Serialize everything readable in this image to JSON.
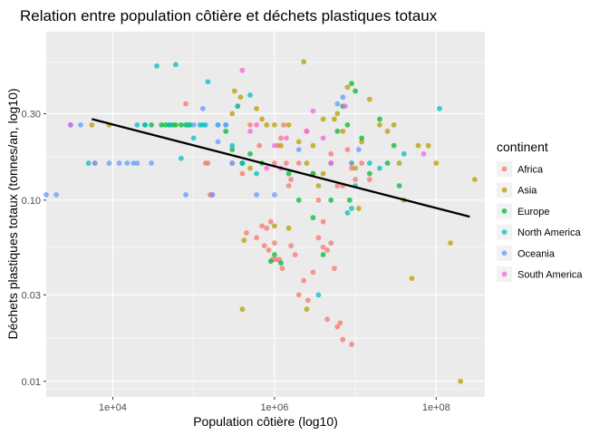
{
  "chart_data": {
    "type": "scatter",
    "title": "Relation entre population côtière et déchets plastiques totaux",
    "xlabel": "Population côtière (log10)",
    "ylabel": "Déchets plastiques totaux (tonnes/an, log10)",
    "x_scale": "log10",
    "y_scale": "log10",
    "xlim": [
      1500,
      400000000
    ],
    "ylim": [
      0.0082,
      0.85
    ],
    "x_ticks": [
      10000,
      1000000,
      100000000
    ],
    "x_tick_labels": [
      "1e+04",
      "1e+06",
      "1e+08"
    ],
    "y_ticks": [
      0.01,
      0.03,
      0.1,
      0.3
    ],
    "y_tick_labels": [
      "0.01",
      "0.03",
      "0.10",
      "0.30"
    ],
    "grid": true,
    "legend_position": "right",
    "legend_title": "continent",
    "trend_line": {
      "x": [
        5500,
        260000000
      ],
      "y": [
        0.28,
        0.081
      ]
    },
    "series": [
      {
        "name": "Africa",
        "color": "#F8766D",
        "points": [
          [
            6000,
            0.16
          ],
          [
            80000,
            0.34
          ],
          [
            140000,
            0.16
          ],
          [
            150000,
            0.16
          ],
          [
            160000,
            0.107
          ],
          [
            170000,
            0.107
          ],
          [
            300000,
            0.16
          ],
          [
            400000,
            0.14
          ],
          [
            500000,
            0.26
          ],
          [
            650000,
            0.2
          ],
          [
            700000,
            0.072
          ],
          [
            800000,
            0.07
          ],
          [
            900000,
            0.076
          ],
          [
            1000000,
            0.16
          ],
          [
            1100000,
            0.2
          ],
          [
            1200000,
            0.22
          ],
          [
            1300000,
            0.26
          ],
          [
            1400000,
            0.16
          ],
          [
            1500000,
            0.12
          ],
          [
            1600000,
            0.13
          ],
          [
            2000000,
            0.16
          ],
          [
            2500000,
            0.24
          ],
          [
            3000000,
            0.14
          ],
          [
            3500000,
            0.1
          ],
          [
            4000000,
            0.076
          ],
          [
            5000000,
            0.18
          ],
          [
            6000000,
            0.12
          ],
          [
            7000000,
            0.12
          ],
          [
            8000000,
            0.19
          ],
          [
            9000000,
            0.15
          ],
          [
            10000000,
            0.13
          ],
          [
            12000000,
            0.16
          ],
          [
            15000000,
            0.13
          ],
          [
            450000,
            0.066
          ],
          [
            600000,
            0.062
          ],
          [
            750000,
            0.056
          ],
          [
            850000,
            0.053
          ],
          [
            950000,
            0.047
          ],
          [
            1050000,
            0.047
          ],
          [
            1150000,
            0.047
          ],
          [
            1250000,
            0.042
          ],
          [
            1600000,
            0.056
          ],
          [
            1800000,
            0.05
          ],
          [
            2000000,
            0.03
          ],
          [
            2300000,
            0.036
          ],
          [
            2600000,
            0.028
          ],
          [
            3000000,
            0.04
          ],
          [
            3500000,
            0.062
          ],
          [
            4000000,
            0.055
          ],
          [
            4500000,
            0.053
          ],
          [
            5000000,
            0.058
          ],
          [
            5500000,
            0.042
          ],
          [
            6000000,
            0.02
          ],
          [
            6500000,
            0.021
          ],
          [
            7000000,
            0.017
          ],
          [
            9000000,
            0.016
          ],
          [
            4500000,
            0.022
          ],
          [
            1000000,
            0.058
          ]
        ]
      },
      {
        "name": "Asia",
        "color": "#B79F00",
        "points": [
          [
            5500,
            0.26
          ],
          [
            9000,
            0.26
          ],
          [
            300000,
            0.3
          ],
          [
            320000,
            0.4
          ],
          [
            350000,
            0.33
          ],
          [
            380000,
            0.37
          ],
          [
            400000,
            0.16
          ],
          [
            420000,
            0.06
          ],
          [
            500000,
            0.15
          ],
          [
            600000,
            0.32
          ],
          [
            700000,
            0.28
          ],
          [
            800000,
            0.26
          ],
          [
            1000000,
            0.26
          ],
          [
            1200000,
            0.2
          ],
          [
            1500000,
            0.26
          ],
          [
            2000000,
            0.21
          ],
          [
            2300000,
            0.58
          ],
          [
            2500000,
            0.16
          ],
          [
            3000000,
            0.2
          ],
          [
            3500000,
            0.12
          ],
          [
            4000000,
            0.28
          ],
          [
            5000000,
            0.16
          ],
          [
            5500000,
            0.28
          ],
          [
            6000000,
            0.3
          ],
          [
            7000000,
            0.24
          ],
          [
            8000000,
            0.42
          ],
          [
            10000000,
            0.15
          ],
          [
            12000000,
            0.21
          ],
          [
            15000000,
            0.36
          ],
          [
            20000000,
            0.26
          ],
          [
            25000000,
            0.24
          ],
          [
            30000000,
            0.26
          ],
          [
            35000000,
            0.16
          ],
          [
            40000000,
            0.1
          ],
          [
            50000000,
            0.037
          ],
          [
            60000000,
            0.2
          ],
          [
            80000000,
            0.2
          ],
          [
            100000000,
            0.16
          ],
          [
            150000000,
            0.058
          ],
          [
            200000000,
            0.01
          ],
          [
            300000000,
            0.13
          ],
          [
            400000,
            0.025
          ],
          [
            1000000,
            0.072
          ],
          [
            1500000,
            0.07
          ],
          [
            2500000,
            0.025
          ],
          [
            4000000,
            0.14
          ],
          [
            9000000,
            0.16
          ],
          [
            11000000,
            0.09
          ]
        ]
      },
      {
        "name": "Europe",
        "color": "#00BA38",
        "points": [
          [
            25000,
            0.26
          ],
          [
            30000,
            0.26
          ],
          [
            40000,
            0.26
          ],
          [
            45000,
            0.26
          ],
          [
            50000,
            0.26
          ],
          [
            55000,
            0.26
          ],
          [
            60000,
            0.26
          ],
          [
            70000,
            0.26
          ],
          [
            80000,
            0.26
          ],
          [
            90000,
            0.26
          ],
          [
            250000,
            0.24
          ],
          [
            300000,
            0.19
          ],
          [
            400000,
            0.16
          ],
          [
            500000,
            0.18
          ],
          [
            700000,
            0.16
          ],
          [
            900000,
            0.046
          ],
          [
            1000000,
            0.05
          ],
          [
            1500000,
            0.14
          ],
          [
            2000000,
            0.1
          ],
          [
            3000000,
            0.08
          ],
          [
            4000000,
            0.05
          ],
          [
            5000000,
            0.1
          ],
          [
            6000000,
            0.24
          ],
          [
            7000000,
            0.33
          ],
          [
            8000000,
            0.26
          ],
          [
            9000000,
            0.44
          ],
          [
            10000000,
            0.4
          ],
          [
            12000000,
            0.22
          ],
          [
            15000000,
            0.14
          ],
          [
            20000000,
            0.28
          ],
          [
            25000000,
            0.16
          ],
          [
            30000000,
            0.2
          ],
          [
            35000000,
            0.12
          ],
          [
            3000000,
            0.14
          ],
          [
            1200000,
            0.045
          ],
          [
            8500000,
            0.1
          ]
        ]
      },
      {
        "name": "North America",
        "color": "#00BFC4",
        "points": [
          [
            3000,
            0.26
          ],
          [
            5000,
            0.16
          ],
          [
            20000,
            0.26
          ],
          [
            25000,
            0.26
          ],
          [
            35000,
            0.55
          ],
          [
            50000,
            0.26
          ],
          [
            60000,
            0.56
          ],
          [
            70000,
            0.17
          ],
          [
            85000,
            0.26
          ],
          [
            100000,
            0.22
          ],
          [
            120000,
            0.26
          ],
          [
            130000,
            0.26
          ],
          [
            140000,
            0.26
          ],
          [
            150000,
            0.45
          ],
          [
            200000,
            0.26
          ],
          [
            250000,
            0.26
          ],
          [
            300000,
            0.2
          ],
          [
            350000,
            0.33
          ],
          [
            400000,
            0.16
          ],
          [
            500000,
            0.38
          ],
          [
            3500000,
            0.03
          ],
          [
            8000000,
            0.085
          ],
          [
            9000000,
            0.09
          ],
          [
            10000000,
            0.12
          ],
          [
            15000000,
            0.16
          ],
          [
            20000000,
            0.15
          ],
          [
            40000000,
            0.18
          ],
          [
            110000000,
            0.32
          ],
          [
            600000,
            0.14
          ]
        ]
      },
      {
        "name": "Oceania",
        "color": "#619CFF",
        "points": [
          [
            1500,
            0.107
          ],
          [
            2000,
            0.107
          ],
          [
            3000,
            0.26
          ],
          [
            4000,
            0.26
          ],
          [
            6000,
            0.16
          ],
          [
            9000,
            0.16
          ],
          [
            12000,
            0.16
          ],
          [
            15000,
            0.16
          ],
          [
            18000,
            0.16
          ],
          [
            20000,
            0.16
          ],
          [
            30000,
            0.16
          ],
          [
            80000,
            0.107
          ],
          [
            100000,
            0.26
          ],
          [
            130000,
            0.32
          ],
          [
            170000,
            0.107
          ],
          [
            200000,
            0.26
          ],
          [
            250000,
            0.26
          ],
          [
            300000,
            0.16
          ],
          [
            600000,
            0.107
          ],
          [
            1000000,
            0.107
          ],
          [
            2000000,
            0.19
          ],
          [
            5000000,
            0.16
          ],
          [
            6000000,
            0.34
          ],
          [
            7000000,
            0.37
          ],
          [
            9000000,
            0.16
          ],
          [
            11000000,
            0.19
          ],
          [
            200000,
            0.21
          ]
        ]
      },
      {
        "name": "South America",
        "color": "#F564E3",
        "points": [
          [
            3000,
            0.26
          ],
          [
            400000,
            0.52
          ],
          [
            500000,
            0.24
          ],
          [
            600000,
            0.26
          ],
          [
            800000,
            0.15
          ],
          [
            1000000,
            0.2
          ],
          [
            1400000,
            0.22
          ],
          [
            3000000,
            0.31
          ],
          [
            4000000,
            0.22
          ],
          [
            5000000,
            0.16
          ],
          [
            7500000,
            0.33
          ],
          [
            70000000,
            0.18
          ],
          [
            2500000,
            0.24
          ],
          [
            1200000,
            0.15
          ]
        ]
      }
    ]
  }
}
